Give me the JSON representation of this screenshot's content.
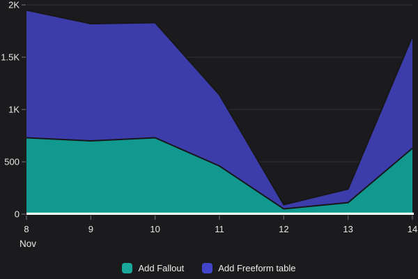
{
  "chart_data": {
    "type": "area",
    "stacked": true,
    "title": "",
    "x": [
      8,
      9,
      10,
      11,
      12,
      13,
      14
    ],
    "x_tick_labels": [
      "8",
      "9",
      "10",
      "11",
      "12",
      "13",
      "14"
    ],
    "x_axis_label": "Nov",
    "y_ticks": [
      {
        "value": 0,
        "label": "0"
      },
      {
        "value": 500,
        "label": "500"
      },
      {
        "value": 1000,
        "label": "1K"
      },
      {
        "value": 1500,
        "label": "1.5K"
      },
      {
        "value": 2000,
        "label": "2K"
      }
    ],
    "ylim": [
      0,
      2000
    ],
    "grid": "horizontal",
    "legend_position": "bottom-center",
    "series": [
      {
        "name": "Add Fallout",
        "color": "#12998F",
        "swatch_color": "#1BA89C",
        "values": [
          730,
          700,
          730,
          460,
          50,
          110,
          630
        ]
      },
      {
        "name": "Add Freeform table",
        "color": "#3C3DAB",
        "swatch_color": "#4145C9",
        "values": [
          1220,
          1120,
          1100,
          680,
          40,
          130,
          1070
        ]
      }
    ],
    "stacked_totals": [
      1950,
      1820,
      1830,
      1140,
      90,
      240,
      1700
    ]
  },
  "colors": {
    "background": "#1B1B1D",
    "grid_line": "#303032",
    "tick": "#5A5A5C",
    "axis_text": "#E8E8E8",
    "baseline": "#FFFFFF",
    "area_edge": "#17171A"
  }
}
